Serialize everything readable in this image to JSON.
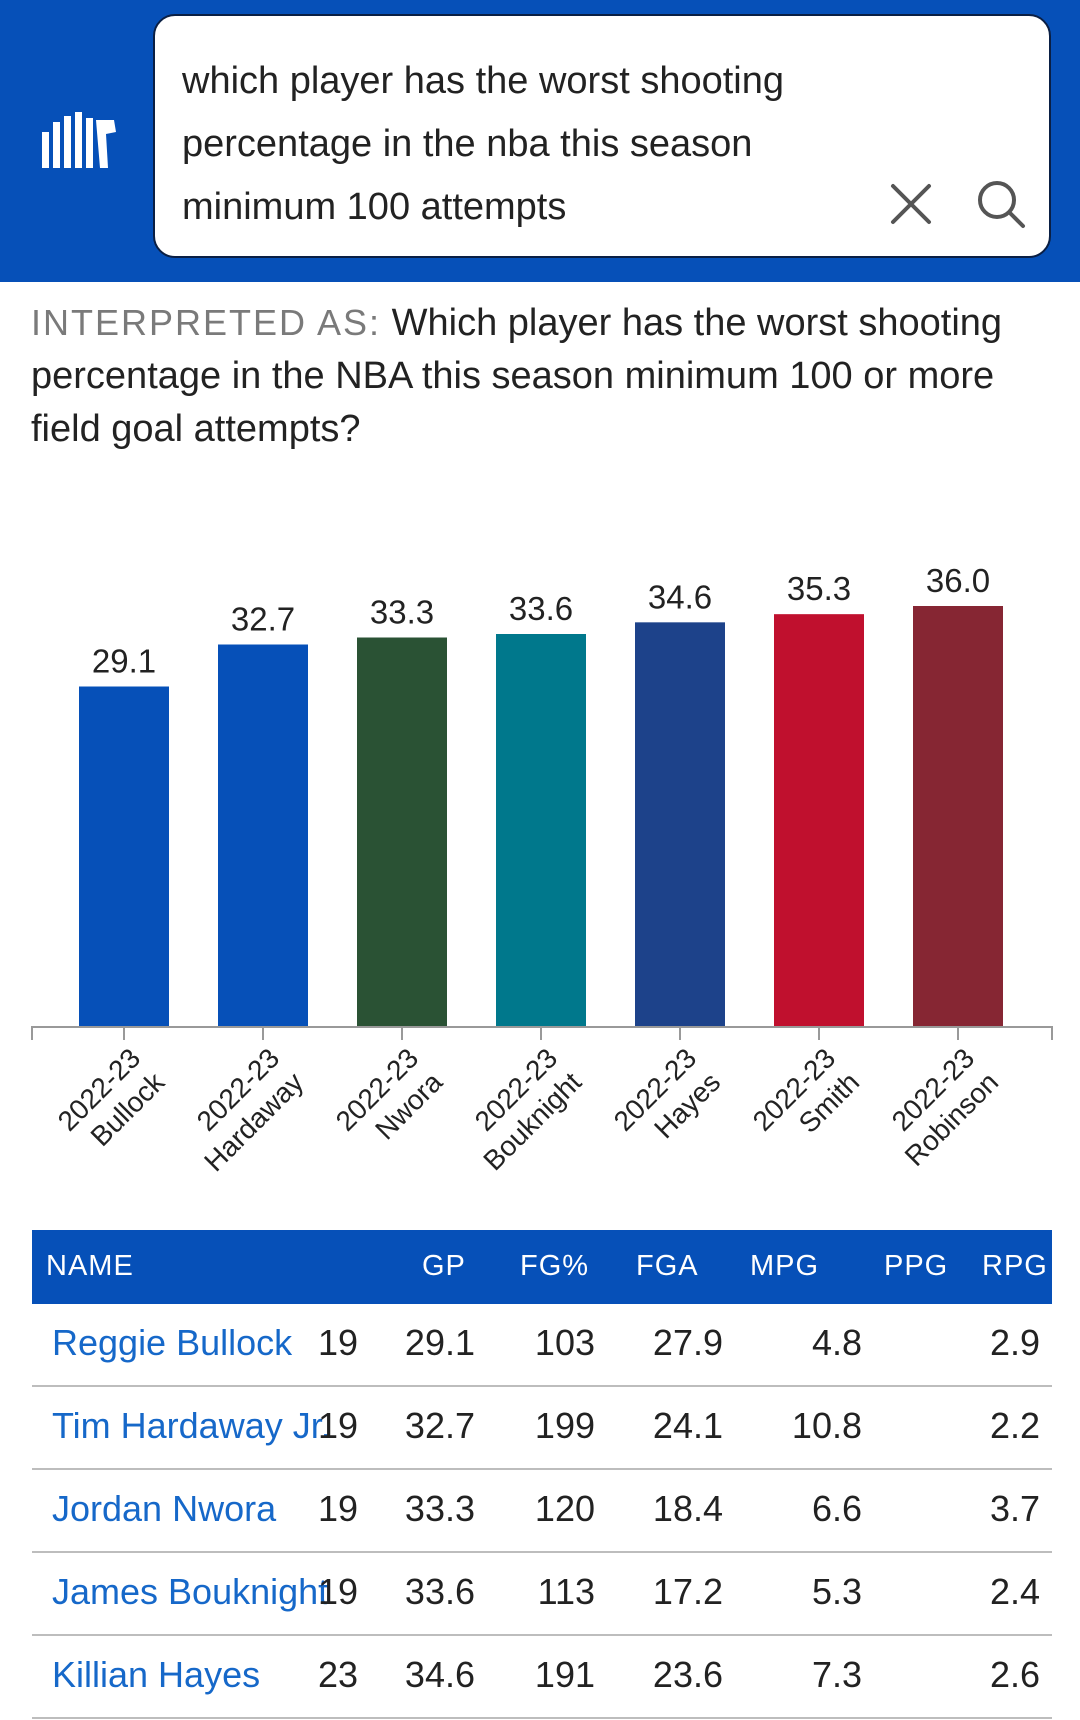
{
  "search": {
    "query": "which player has the worst shooting percentage in the nba this season minimum 100 attempts"
  },
  "interpreted": {
    "label": "INTERPRETED AS:",
    "text": "Which player has the worst shooting percentage in the NBA this season minimum 100 or more field goal attempts?"
  },
  "icons": {
    "logo": "statmuse-logo-icon",
    "clear": "close-icon",
    "search": "search-icon"
  },
  "colors": {
    "brand_blue": "#0650b8",
    "link_blue": "#1668c9"
  },
  "chart_data": {
    "type": "bar",
    "categories": [
      [
        "2022-23",
        "Bullock"
      ],
      [
        "2022-23",
        "Hardaway"
      ],
      [
        "2022-23",
        "Nwora"
      ],
      [
        "2022-23",
        "Bouknight"
      ],
      [
        "2022-23",
        "Hayes"
      ],
      [
        "2022-23",
        "Smith"
      ],
      [
        "2022-23",
        "Robinson"
      ]
    ],
    "values": [
      29.1,
      32.7,
      33.3,
      33.6,
      34.6,
      35.3,
      36.0
    ],
    "value_labels": [
      "29.1",
      "32.7",
      "33.3",
      "33.6",
      "34.6",
      "35.3",
      "36.0"
    ],
    "colors": [
      "#0650b8",
      "#0650b8",
      "#2a5234",
      "#00788c",
      "#1d428a",
      "#c0102e",
      "#862633"
    ],
    "ylim": [
      0,
      36.0
    ],
    "grid": false,
    "title": "",
    "xlabel": "",
    "ylabel": ""
  },
  "table": {
    "headers": [
      "NAME",
      "GP",
      "FG%",
      "FGA",
      "MPG",
      "PPG",
      "RPG"
    ],
    "rows": [
      {
        "name": "Reggie Bullock",
        "gp": "19",
        "fgp": "29.1",
        "fga": "103",
        "mpg": "27.9",
        "ppg": "4.8",
        "rpg": "2.9"
      },
      {
        "name": "Tim Hardaway Jr.",
        "gp": "19",
        "fgp": "32.7",
        "fga": "199",
        "mpg": "24.1",
        "ppg": "10.8",
        "rpg": "2.2"
      },
      {
        "name": "Jordan Nwora",
        "gp": "19",
        "fgp": "33.3",
        "fga": "120",
        "mpg": "18.4",
        "ppg": "6.6",
        "rpg": "3.7"
      },
      {
        "name": "James Bouknight",
        "gp": "19",
        "fgp": "33.6",
        "fga": "113",
        "mpg": "17.2",
        "ppg": "5.3",
        "rpg": "2.4"
      },
      {
        "name": "Killian Hayes",
        "gp": "23",
        "fgp": "34.6",
        "fga": "191",
        "mpg": "23.6",
        "ppg": "7.3",
        "rpg": "2.6"
      }
    ]
  }
}
